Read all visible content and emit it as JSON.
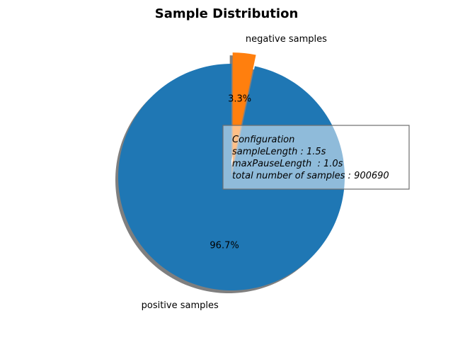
{
  "chart_data": {
    "type": "pie",
    "title": "Sample Distribution",
    "labels": [
      "positive samples",
      "negative samples"
    ],
    "values": [
      96.7,
      3.3
    ],
    "value_labels": [
      "96.7%",
      "3.3%"
    ],
    "explode": [
      0,
      0.1
    ],
    "colors": [
      "#1f77b4",
      "#ff7f0e"
    ],
    "start_angle_deg": 90,
    "shadow": true,
    "annotation_box": {
      "lines": [
        "Configuration",
        "sampleLength : 1.5s",
        "maxPauseLength  : 1.0s",
        "total number of samples : 900690"
      ]
    }
  }
}
